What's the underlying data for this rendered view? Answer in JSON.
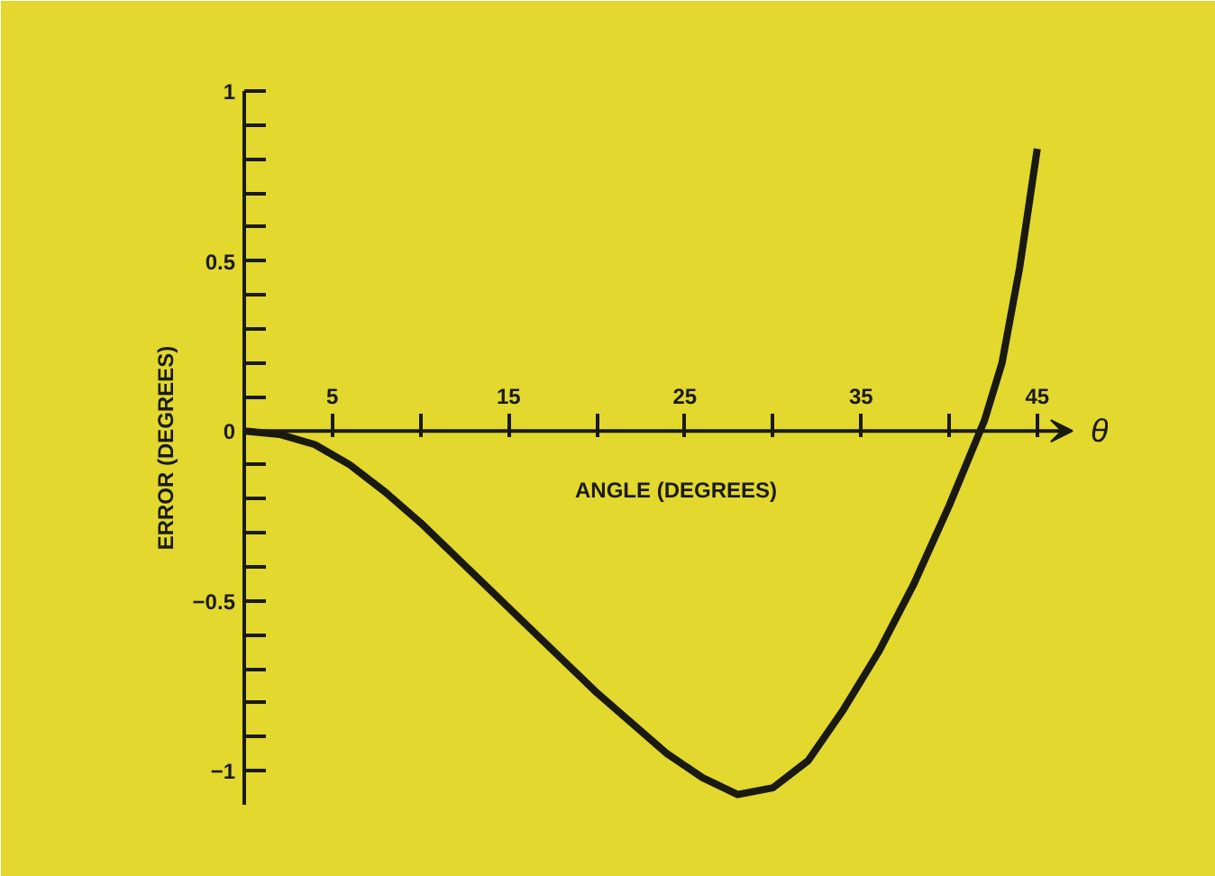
{
  "chart_data": {
    "type": "line",
    "xlabel": "ANGLE (DEGREES)",
    "ylabel": "ERROR (DEGREES)",
    "annotations": [
      "θ"
    ],
    "x": [
      0,
      2,
      4,
      6,
      8,
      10,
      12,
      14,
      16,
      18,
      20,
      22,
      24,
      26,
      28,
      30,
      32,
      34,
      36,
      38,
      40,
      42,
      43,
      44,
      45
    ],
    "series": [
      {
        "color": "#1a1a12",
        "values": [
          0,
          -0.01,
          -0.04,
          -0.1,
          -0.18,
          -0.27,
          -0.37,
          -0.47,
          -0.57,
          -0.67,
          -0.77,
          -0.86,
          -0.95,
          -1.02,
          -1.07,
          -1.05,
          -0.97,
          -0.82,
          -0.65,
          -0.45,
          -0.22,
          0.03,
          0.2,
          0.48,
          0.83
        ]
      }
    ],
    "xlim": [
      0,
      49
    ],
    "ylim": [
      -1.1,
      1
    ],
    "xticks": [
      {
        "value": 0,
        "label": null
      },
      5,
      {
        "value": 10,
        "label": null
      },
      15,
      {
        "value": 20,
        "label": null
      },
      25,
      {
        "value": 30,
        "label": null
      },
      35,
      {
        "value": 40,
        "label": null
      },
      45
    ],
    "yticks": [
      -1,
      {
        "value": -0.9,
        "label": null
      },
      {
        "value": -0.8,
        "label": null
      },
      {
        "value": -0.7,
        "label": null
      },
      {
        "value": -0.6,
        "label": null
      },
      -0.5,
      {
        "value": -0.4,
        "label": null
      },
      {
        "value": -0.3,
        "label": null
      },
      {
        "value": -0.2,
        "label": null
      },
      {
        "value": -0.1,
        "label": null
      },
      0,
      {
        "value": 0.1,
        "label": null
      },
      {
        "value": 0.2,
        "label": null
      },
      {
        "value": 0.3,
        "label": null
      },
      {
        "value": 0.4,
        "label": null
      },
      0.5,
      {
        "value": 0.6,
        "label": null
      },
      {
        "value": 0.7,
        "label": null
      },
      {
        "value": 0.8,
        "label": null
      },
      {
        "value": 0.9,
        "label": null
      },
      1
    ],
    "grid": false,
    "marker": "none",
    "line_style": "solid"
  }
}
